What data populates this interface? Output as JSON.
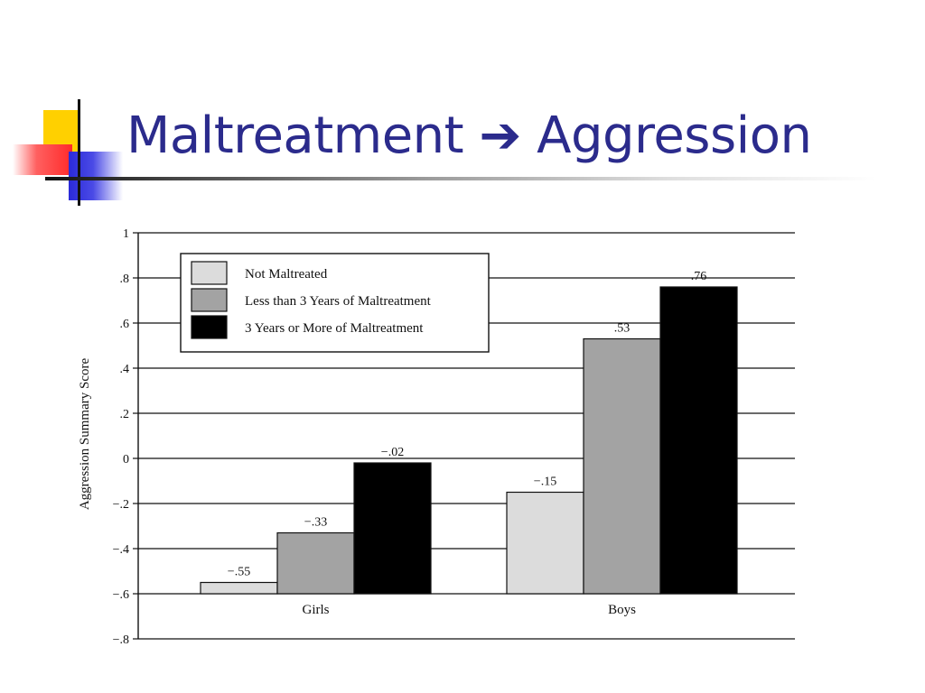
{
  "slide": {
    "title": "Maltreatment ➔ Aggression"
  },
  "chart_data": {
    "type": "bar",
    "categories": [
      "Girls",
      "Boys"
    ],
    "series": [
      {
        "name": "Not Maltreated",
        "values": [
          -0.55,
          -0.15
        ],
        "labels": [
          "−.55",
          "−.15"
        ],
        "color": "#dcdcdc"
      },
      {
        "name": "Less than 3 Years of Maltreatment",
        "values": [
          -0.33,
          0.53
        ],
        "labels": [
          "−.33",
          ".53"
        ],
        "color": "#a3a3a3"
      },
      {
        "name": "3 Years or More of Maltreatment",
        "values": [
          -0.02,
          0.76
        ],
        "labels": [
          "−.02",
          ".76"
        ],
        "color": "#000000"
      }
    ],
    "ylabel": "Aggression Summary Score",
    "xlabel": "",
    "ylim": [
      -0.8,
      1.0
    ],
    "yticks": [
      {
        "value": 1.0,
        "label": "1"
      },
      {
        "value": 0.8,
        "label": ".8"
      },
      {
        "value": 0.6,
        "label": ".6"
      },
      {
        "value": 0.4,
        "label": ".4"
      },
      {
        "value": 0.2,
        "label": ".2"
      },
      {
        "value": 0.0,
        "label": "0"
      },
      {
        "value": -0.2,
        "label": "−.2"
      },
      {
        "value": -0.4,
        "label": "−.4"
      },
      {
        "value": -0.6,
        "label": "−.6"
      },
      {
        "value": -0.8,
        "label": "−.8"
      }
    ],
    "grid": true,
    "legend_position": "top-left"
  }
}
